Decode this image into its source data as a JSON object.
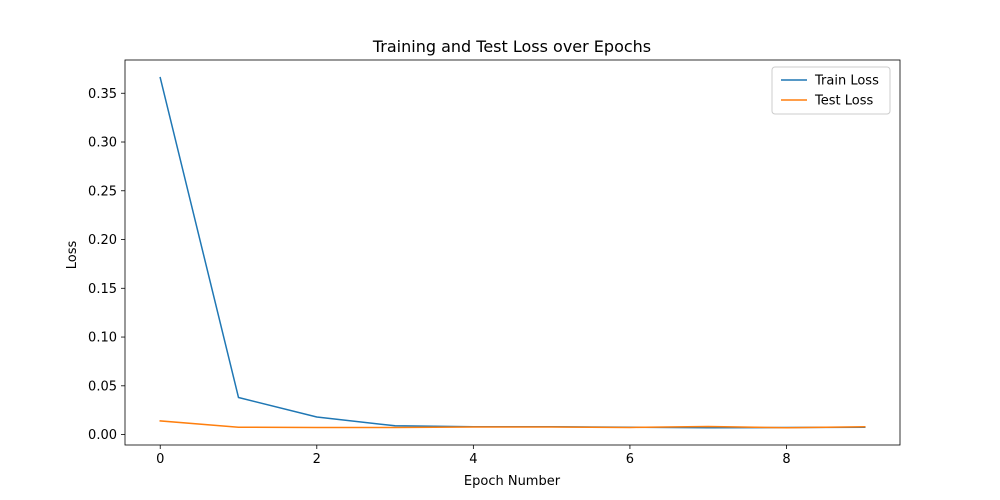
{
  "chart_data": {
    "type": "line",
    "title": "Training and Test Loss over Epochs",
    "xlabel": "Epoch Number",
    "ylabel": "Loss",
    "x": [
      0,
      1,
      2,
      3,
      4,
      5,
      6,
      7,
      8,
      9
    ],
    "xlim": [
      -0.45,
      9.45
    ],
    "ylim": [
      -0.0107,
      0.3841
    ],
    "x_ticks": [
      0,
      2,
      4,
      6,
      8
    ],
    "x_tick_labels": [
      "0",
      "2",
      "4",
      "6",
      "8"
    ],
    "y_ticks": [
      0.0,
      0.05,
      0.1,
      0.15,
      0.2,
      0.25,
      0.3,
      0.35
    ],
    "y_tick_labels": [
      "0.00",
      "0.05",
      "0.10",
      "0.15",
      "0.20",
      "0.25",
      "0.30",
      "0.35"
    ],
    "grid": false,
    "legend_position": "top-right",
    "series": [
      {
        "name": "Train Loss",
        "color": "#1f77b4",
        "values": [
          0.366,
          0.038,
          0.018,
          0.009,
          0.008,
          0.008,
          0.0075,
          0.007,
          0.0072,
          0.0075
        ]
      },
      {
        "name": "Test Loss",
        "color": "#ff7f0e",
        "values": [
          0.014,
          0.0075,
          0.0072,
          0.0072,
          0.0078,
          0.0078,
          0.0073,
          0.0083,
          0.007,
          0.008
        ]
      }
    ]
  }
}
